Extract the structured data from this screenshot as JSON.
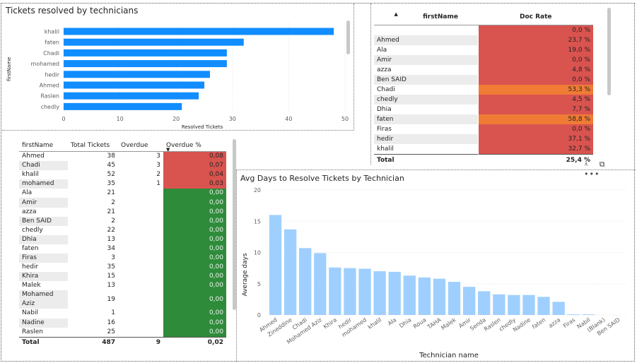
{
  "tickets_panel": {
    "title": "Tickets resolved by technicians",
    "chart_data": {
      "type": "bar",
      "orientation": "horizontal",
      "categories": [
        "khalil",
        "faten",
        "Chadi",
        "mohamed",
        "hedir",
        "Ahmed",
        "Raslen",
        "chedly"
      ],
      "values": [
        48,
        32,
        29,
        29,
        26,
        25,
        24,
        21
      ],
      "xlabel": "Resolved Tickets",
      "ylabel": "firstName",
      "xlim": [
        0,
        50
      ],
      "xticks": [
        "0",
        "10",
        "20",
        "30",
        "40",
        "50"
      ],
      "color": "#118dff",
      "grid": true
    }
  },
  "docrate_table": {
    "headers": {
      "name": "firstName",
      "rate": "Doc Rate"
    },
    "rows": [
      {
        "name": "",
        "rate": "0,0 %",
        "color": "#d9534f"
      },
      {
        "name": "Ahmed",
        "rate": "23,7 %",
        "color": "#d9534f"
      },
      {
        "name": "Ala",
        "rate": "19,0 %",
        "color": "#d9534f"
      },
      {
        "name": "Amir",
        "rate": "0,0 %",
        "color": "#d9534f"
      },
      {
        "name": "azza",
        "rate": "4,8 %",
        "color": "#d9534f"
      },
      {
        "name": "Ben SAID",
        "rate": "0,0 %",
        "color": "#d9534f"
      },
      {
        "name": "Chadi",
        "rate": "53,3 %",
        "color": "#ef7b35"
      },
      {
        "name": "chedly",
        "rate": "4,5 %",
        "color": "#d9534f"
      },
      {
        "name": "Dhia",
        "rate": "7,7 %",
        "color": "#d9534f"
      },
      {
        "name": "faten",
        "rate": "58,8 %",
        "color": "#ef7b35"
      },
      {
        "name": "Firas",
        "rate": "0,0 %",
        "color": "#d9534f"
      },
      {
        "name": "hedir",
        "rate": "37,1 %",
        "color": "#d9534f"
      },
      {
        "name": "khalil",
        "rate": "32,7 %",
        "color": "#d9534f"
      }
    ],
    "total": {
      "label": "Total",
      "value": "25,4 %"
    }
  },
  "overdue_table": {
    "headers": {
      "name": "firstName",
      "total": "Total Tickets",
      "overdue": "Overdue",
      "pct": "Overdue %"
    },
    "rows": [
      {
        "name": "Ahmed",
        "total": "38",
        "overdue": "3",
        "pct": "0,08",
        "status": "red"
      },
      {
        "name": "Chadi",
        "total": "45",
        "overdue": "3",
        "pct": "0,07",
        "status": "red"
      },
      {
        "name": "khalil",
        "total": "52",
        "overdue": "2",
        "pct": "0,04",
        "status": "red"
      },
      {
        "name": "mohamed",
        "total": "35",
        "overdue": "1",
        "pct": "0,03",
        "status": "red"
      },
      {
        "name": "Ala",
        "total": "21",
        "overdue": "",
        "pct": "0,00",
        "status": "green"
      },
      {
        "name": "Amir",
        "total": "2",
        "overdue": "",
        "pct": "0,00",
        "status": "green"
      },
      {
        "name": "azza",
        "total": "21",
        "overdue": "",
        "pct": "0,00",
        "status": "green"
      },
      {
        "name": "Ben SAID",
        "total": "2",
        "overdue": "",
        "pct": "0,00",
        "status": "green"
      },
      {
        "name": "chedly",
        "total": "22",
        "overdue": "",
        "pct": "0,00",
        "status": "green"
      },
      {
        "name": "Dhia",
        "total": "13",
        "overdue": "",
        "pct": "0,00",
        "status": "green"
      },
      {
        "name": "faten",
        "total": "34",
        "overdue": "",
        "pct": "0,00",
        "status": "green"
      },
      {
        "name": "Firas",
        "total": "3",
        "overdue": "",
        "pct": "0,00",
        "status": "green"
      },
      {
        "name": "hedir",
        "total": "35",
        "overdue": "",
        "pct": "0,00",
        "status": "green"
      },
      {
        "name": "Khira",
        "total": "15",
        "overdue": "",
        "pct": "0,00",
        "status": "green"
      },
      {
        "name": "Malek",
        "total": "13",
        "overdue": "",
        "pct": "0,00",
        "status": "green"
      },
      {
        "name": "Mohamed Aziz",
        "total": "19",
        "overdue": "",
        "pct": "0,00",
        "status": "green"
      },
      {
        "name": "Nabil",
        "total": "1",
        "overdue": "",
        "pct": "0,00",
        "status": "green"
      },
      {
        "name": "Nadine",
        "total": "16",
        "overdue": "",
        "pct": "0,00",
        "status": "green"
      },
      {
        "name": "Raslen",
        "total": "25",
        "overdue": "",
        "pct": "0,00",
        "status": "green"
      }
    ],
    "total": {
      "label": "Total",
      "total": "487",
      "overdue": "9",
      "pct": "0,02"
    }
  },
  "avgdays_panel": {
    "title": "Avg Days to Resolve Tickets by Technician",
    "chart_data": {
      "type": "bar",
      "categories": [
        "Ahmed",
        "Zineddine",
        "Chadi",
        "Mohamed Aziz",
        "Khira",
        "hedir",
        "mohamed",
        "khalil",
        "Ala",
        "Dhia",
        "Roua",
        "TAHA",
        "Malek",
        "Amir",
        "Senda",
        "Raslen",
        "chedly",
        "Nadine",
        "faten",
        "azza",
        "Firas",
        "Nabil",
        "(Blank)",
        "Ben SAID"
      ],
      "values": [
        16.0,
        13.7,
        10.7,
        9.9,
        7.6,
        7.5,
        7.4,
        7.0,
        6.9,
        6.3,
        6.0,
        5.8,
        5.3,
        4.5,
        3.8,
        3.3,
        3.2,
        3.2,
        2.9,
        2.1,
        0.1,
        0.1,
        0,
        0
      ],
      "xlabel": "Technician name",
      "ylabel": "Average days",
      "ylim": [
        0,
        20
      ],
      "yticks": [
        "0",
        "5",
        "10",
        "15",
        "20"
      ],
      "color": "#9fcffe",
      "grid": true
    }
  },
  "visual_header_icons": [
    "filter-icon",
    "focus-mode-icon",
    "more-options-icon"
  ]
}
